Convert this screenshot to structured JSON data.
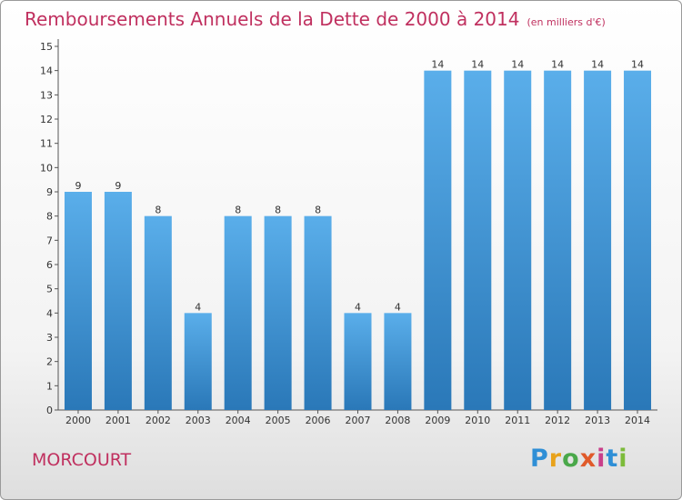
{
  "title": "Remboursements Annuels de la Dette de 2000 à 2014",
  "unit_label": "(en milliers d'€)",
  "place_name": "MORCOURT",
  "logo": {
    "text": "Proxiti"
  },
  "chart_data": {
    "type": "bar",
    "title": "Remboursements Annuels de la Dette de 2000 à 2014",
    "subtitle": "(en milliers d'€)",
    "xlabel": "",
    "ylabel": "",
    "categories": [
      "2000",
      "2001",
      "2002",
      "2003",
      "2004",
      "2005",
      "2006",
      "2007",
      "2008",
      "2009",
      "2010",
      "2011",
      "2012",
      "2013",
      "2014"
    ],
    "values": [
      9,
      9,
      8,
      4,
      8,
      8,
      8,
      4,
      4,
      14,
      14,
      14,
      14,
      14,
      14
    ],
    "data_labels": [
      "9",
      "9",
      "8",
      "4",
      "8",
      "8",
      "8",
      "4",
      "4",
      "14",
      "14",
      "14",
      "14",
      "14",
      "14"
    ],
    "ylim": [
      0,
      15
    ],
    "yticks": [
      0,
      1,
      2,
      3,
      4,
      5,
      6,
      7,
      8,
      9,
      10,
      11,
      12,
      13,
      14,
      15
    ],
    "grid": false,
    "legend": "none",
    "colors": {
      "bar_top": "#5aaeea",
      "bar_bottom": "#2a78b8",
      "title": "#c0305f"
    }
  }
}
